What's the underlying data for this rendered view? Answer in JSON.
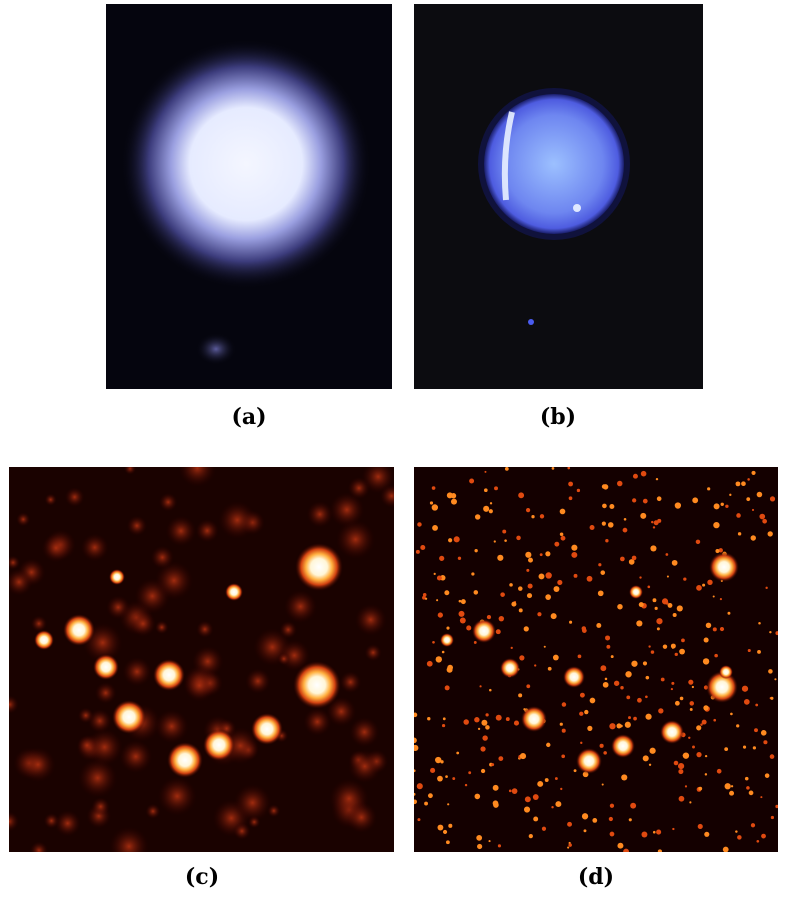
{
  "figure": {
    "captions": {
      "a": "(a)",
      "b": "(b)",
      "c": "(c)",
      "d": "(d)"
    }
  }
}
